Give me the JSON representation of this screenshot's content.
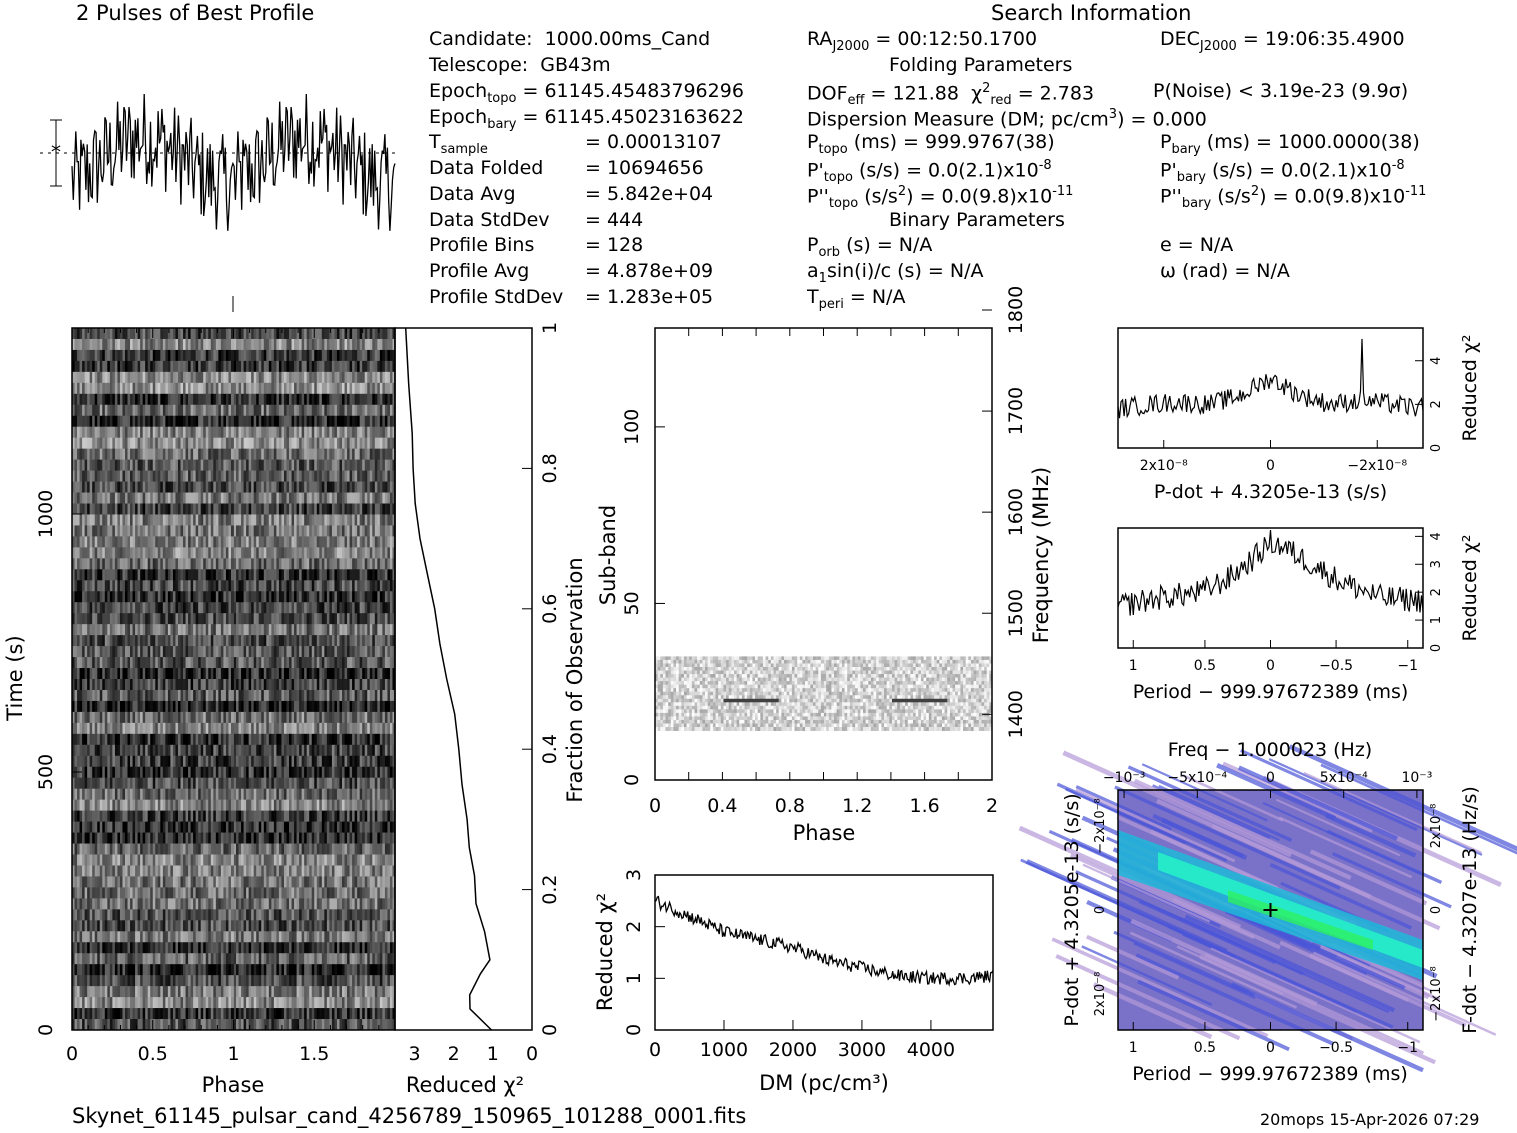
{
  "header": {
    "profile_title": "2 Pulses of Best Profile",
    "search_title": "Search Information"
  },
  "info": {
    "candidate_label": "Candidate:",
    "candidate": "1000.00ms_Cand",
    "telescope_label": "Telescope:",
    "telescope": "GB43m",
    "epoch_topo_label": "Epoch",
    "epoch_topo_sub": "topo",
    "epoch_topo": "= 61145.45483796296",
    "epoch_bary_label": "Epoch",
    "epoch_bary_sub": "bary",
    "epoch_bary": "= 61145.45023163622",
    "tsample_label": "T",
    "tsample_sub": "sample",
    "tsample": "=   0.00013107",
    "data_folded_label": "Data Folded",
    "data_folded": "=   10694656",
    "data_avg_label": "Data Avg",
    "data_avg": "=   5.842e+04",
    "data_std_label": "Data StdDev",
    "data_std": "=   444",
    "profile_bins_label": "Profile Bins",
    "profile_bins": "=   128",
    "profile_avg_label": "Profile Avg",
    "profile_avg": "=   4.878e+09",
    "profile_std_label": "Profile StdDev",
    "profile_std": "=   1.283e+05",
    "ra": "RA",
    "ra_sub": "J2000",
    "ra_val": "= 00:12:50.1700",
    "dec": "DEC",
    "dec_sub": "J2000",
    "dec_val": "= 19:06:35.4900",
    "folding_title": "Folding Parameters",
    "dof": "DOF",
    "dof_sub": "eff",
    "dof_val": "= 121.88",
    "chi_sym": "χ",
    "chi_sup": "2",
    "chi_sub": "red",
    "chi_val": "= 2.783",
    "pnoise": "P(Noise) < 3.19e-23  (9.9σ)",
    "dm_line": "Dispersion Measure (DM; pc/cm",
    "dm_sup": "3",
    "dm_val": ") = 0.000",
    "ptopo": "P",
    "ptopo_sub": "topo",
    "ptopo_val": "(ms) =  999.9767(38)",
    "pbary": "P",
    "pbary_sub": "bary",
    "pbary_val": "(ms) =  1000.0000(38)",
    "pdtopo": "P'",
    "pdtopo_sub": "topo",
    "pdtopo_val": "(s/s) = 0.0(2.1)x10",
    "pdtopo_exp": "-8",
    "pdbary": "P'",
    "pdbary_sub": "bary",
    "pdbary_val": "(s/s) = 0.0(2.1)x10",
    "pdbary_exp": "-8",
    "pddtopo": "P''",
    "pddtopo_sub": "topo",
    "pddtopo_val": "(s/s",
    "pddtopo_sup": "2",
    "pddtopo_val2": ") = 0.0(9.8)x10",
    "pddtopo_exp": "-11",
    "pddbary": "P''",
    "pddbary_sub": "bary",
    "pddbary_val": "(s/s",
    "pddbary_sup": "2",
    "pddbary_val2": ") = 0.0(9.8)x10",
    "pddbary_exp": "-11",
    "binary_title": "Binary Parameters",
    "porb": "P",
    "porb_sub": "orb",
    "porb_val": "(s) = N/A",
    "ecc": "e = N/A",
    "a1": "a",
    "a1_sub": "1",
    "a1_val": "sin(i)/c (s) = N/A",
    "omega": "ω (rad) = N/A",
    "tperi": "T",
    "tperi_sub": "peri",
    "tperi_val": "= N/A"
  },
  "footer": {
    "filename": "Skynet_61145_pulsar_cand_4256789_150965_101288_0001.fits",
    "stamp": "20mops 15-Apr-2026 07:29"
  },
  "colors": {
    "ink": "#000000",
    "map_low": "#7a72c8",
    "map_high": "#26f0c8"
  },
  "chart_data": [
    {
      "id": "profile",
      "type": "line",
      "title": "2 Pulses of Best Profile",
      "xlabel": "",
      "ylabel": "",
      "xlim": [
        0,
        2
      ],
      "note": "two identical cycles of a noisy folded profile, no clear pulse"
    },
    {
      "id": "time_phase",
      "type": "heatmap",
      "xlabel": "Phase",
      "ylabel": "Time (s)",
      "x_ticks": [
        "0",
        "0.5",
        "1",
        "1.5"
      ],
      "y_ticks": [
        "0",
        "500",
        "1000"
      ],
      "xlim": [
        0,
        2
      ],
      "ylim": [
        0,
        1400
      ]
    },
    {
      "id": "chi_vs_time",
      "type": "line",
      "xlabel": "Reduced χ²",
      "ylabel": "Fraction of Observation",
      "x_ticks": [
        "3",
        "2",
        "1",
        "0"
      ],
      "y_ticks": [
        "0",
        "0.2",
        "0.4",
        "0.6",
        "0.8",
        "1"
      ],
      "x": [
        1.0,
        1.6,
        1.6,
        1.3,
        1.1,
        1.2,
        1.4,
        1.5,
        1.6,
        1.65,
        1.8,
        1.9,
        2.0,
        2.2,
        2.35,
        2.5,
        2.7,
        2.9,
        3.0,
        3.05,
        3.1,
        3.15,
        3.2
      ],
      "y": [
        0.0,
        0.03,
        0.05,
        0.08,
        0.1,
        0.14,
        0.18,
        0.22,
        0.26,
        0.3,
        0.35,
        0.4,
        0.45,
        0.5,
        0.55,
        0.6,
        0.65,
        0.7,
        0.75,
        0.8,
        0.85,
        0.92,
        1.0
      ]
    },
    {
      "id": "subband_phase",
      "type": "heatmap",
      "xlabel": "Phase",
      "ylabel": "Sub-band",
      "y2label": "Frequency (MHz)",
      "x_ticks": [
        "0",
        "0.4",
        "0.8",
        "1.2",
        "1.6",
        "2"
      ],
      "y_ticks": [
        "0",
        "50",
        "100"
      ],
      "y2_ticks": [
        "1400",
        "1500",
        "1600",
        "1700",
        "1800"
      ],
      "xlim": [
        0,
        2
      ],
      "ylim": [
        0,
        128
      ],
      "data_band": [
        14,
        35
      ]
    },
    {
      "id": "dm_chi",
      "type": "line",
      "xlabel": "DM (pc/cm³)",
      "ylabel": "Reduced χ²",
      "x_ticks": [
        "0",
        "1000",
        "2000",
        "3000",
        "4000"
      ],
      "y_ticks": [
        "0",
        "1",
        "2",
        "3"
      ],
      "xlim": [
        0,
        4900
      ],
      "ylim": [
        0,
        3
      ],
      "x": [
        0,
        500,
        1000,
        1500,
        2000,
        2500,
        3000,
        3500,
        4000,
        4500,
        4900
      ],
      "y": [
        2.5,
        2.2,
        1.9,
        1.75,
        1.6,
        1.35,
        1.2,
        1.05,
        1.0,
        1.0,
        1.05
      ]
    },
    {
      "id": "pdot_chi",
      "type": "line",
      "xlabel": "P-dot + 4.3205e-13 (s/s)",
      "ylabel": "Reduced χ²",
      "x_ticks": [
        "2x10⁻⁸",
        "0",
        "−2x10⁻⁸"
      ],
      "y_ticks": [
        "0",
        "2",
        "4"
      ],
      "ylim": [
        0,
        5.5
      ],
      "x": [
        1,
        0.8,
        0.6,
        0.4,
        0.2,
        0.0,
        -0.2,
        -0.4,
        -0.6,
        -0.8,
        -1
      ],
      "y": [
        1.8,
        2.0,
        2.1,
        2.0,
        2.4,
        3.2,
        2.4,
        2.0,
        2.2,
        2.0,
        1.8
      ]
    },
    {
      "id": "period_chi",
      "type": "line",
      "xlabel": "Period − 999.97672389 (ms)",
      "ylabel": "Reduced χ²",
      "x_ticks": [
        "1",
        "0.5",
        "0",
        "−0.5",
        "−1"
      ],
      "y_ticks": [
        "0",
        "1",
        "2",
        "3",
        "4"
      ],
      "xlim": [
        1.1,
        -1.1
      ],
      "ylim": [
        0,
        4.3
      ],
      "x": [
        1.1,
        0.8,
        0.5,
        0.3,
        0.1,
        0.0,
        -0.1,
        -0.3,
        -0.5,
        -0.8,
        -1.1
      ],
      "y": [
        1.5,
        1.8,
        2.0,
        2.5,
        3.3,
        3.8,
        3.6,
        3.0,
        2.4,
        1.8,
        1.7
      ]
    },
    {
      "id": "p_pdot_plane",
      "type": "heatmap",
      "title": "Freq − 1.000023 (Hz)",
      "xlabel": "Period − 999.97672389 (ms)",
      "ylabel": "P-dot + 4.3205e-13 (s/s)",
      "y2label": "F-dot − 4.3207e-13 (Hz/s)",
      "x_ticks": [
        "1",
        "0.5",
        "0",
        "−0.5",
        "−1"
      ],
      "top_ticks": [
        "−10⁻³",
        "−5x10⁻⁴",
        "0",
        "5x10⁻⁴",
        "10⁻³"
      ],
      "y_ticks": [
        "−2x10⁻⁸",
        "0",
        "2x10⁻⁸"
      ],
      "y2_ticks": [
        "2x10⁻⁸",
        "0",
        "−2x10⁻⁸"
      ],
      "best": [
        0,
        0
      ]
    }
  ]
}
